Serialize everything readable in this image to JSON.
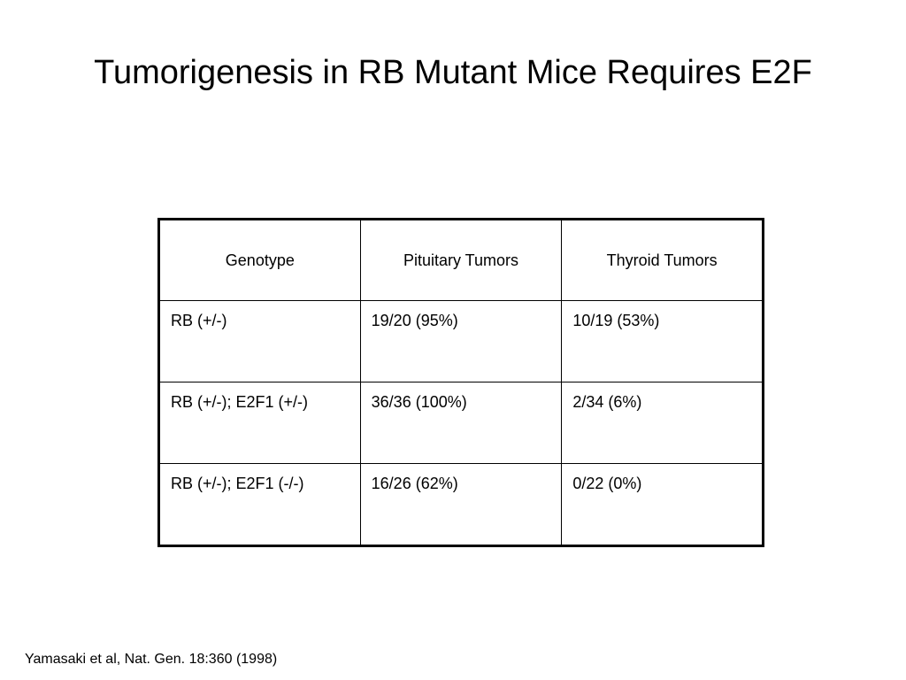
{
  "slide": {
    "title": "Tumorigenesis in RB Mutant Mice Requires E2F",
    "citation": "Yamasaki et al, Nat. Gen. 18:360 (1998)"
  },
  "table": {
    "headers": [
      "Genotype",
      "Pituitary Tumors",
      "Thyroid Tumors"
    ],
    "rows": [
      [
        "RB (+/-)",
        "19/20 (95%)",
        "10/19 (53%)"
      ],
      [
        "RB (+/-); E2F1 (+/-)",
        "36/36 (100%)",
        "2/34 (6%)"
      ],
      [
        "RB (+/-); E2F1 (-/-)",
        "16/26 (62%)",
        "0/22 (0%)"
      ]
    ]
  }
}
